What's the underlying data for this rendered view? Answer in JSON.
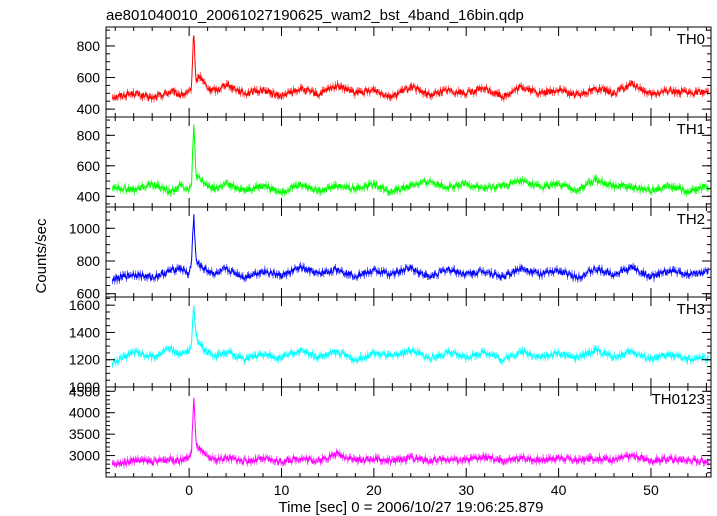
{
  "title": "ae801040010_20061027190625_wam2_bst_4band_16bin.qdp",
  "xlabel": "Time [sec] 0 = 2006/10/27 19:06:25.879",
  "ylabel": "Counts/sec",
  "chart_data": {
    "type": "line",
    "title": "ae801040010_20061027190625_wam2_bst_4band_16bin.qdp",
    "xlabel": "Time [sec] 0 = 2006/10/27 19:06:25.879",
    "ylabel": "Counts/sec",
    "xlim": [
      -9,
      56.5
    ],
    "x_ticks": [
      0,
      10,
      20,
      30,
      40,
      50
    ],
    "x_minor_step": 2,
    "grid": false,
    "x_sample": [
      -8.0,
      -6.0,
      -4.0,
      -2.0,
      -1.0,
      0.0,
      0.25,
      0.5,
      0.75,
      1.0,
      1.5,
      2.0,
      3.0,
      4.0,
      6.0,
      8.0,
      10.0,
      12.0,
      14.0,
      16.0,
      18.0,
      20.0,
      22.0,
      24.0,
      26.0,
      28.0,
      30.0,
      32.0,
      34.0,
      36.0,
      38.0,
      40.0,
      42.0,
      44.0,
      46.0,
      48.0,
      50.0,
      52.0,
      54.0,
      55.5
    ],
    "panels": [
      {
        "name": "TH0",
        "color": "#ff0000",
        "ylim": [
          350,
          920
        ],
        "y_ticks": [
          400,
          600,
          800
        ],
        "y_minor_step": 50,
        "y_sample": [
          480,
          500,
          470,
          510,
          490,
          500,
          540,
          900,
          560,
          610,
          580,
          530,
          520,
          560,
          500,
          520,
          480,
          530,
          490,
          550,
          500,
          520,
          480,
          540,
          490,
          520,
          500,
          530,
          480,
          540,
          500,
          520,
          490,
          530,
          500,
          560,
          490,
          520,
          500,
          510
        ]
      },
      {
        "name": "TH1",
        "color": "#00ff00",
        "ylim": [
          330,
          920
        ],
        "y_ticks": [
          400,
          600,
          800
        ],
        "y_minor_step": 50,
        "y_sample": [
          460,
          440,
          480,
          430,
          470,
          450,
          480,
          870,
          540,
          520,
          490,
          470,
          450,
          480,
          440,
          470,
          430,
          480,
          440,
          470,
          450,
          480,
          430,
          470,
          500,
          460,
          480,
          450,
          470,
          500,
          460,
          480,
          440,
          510,
          470,
          460,
          440,
          470,
          430,
          460
        ]
      },
      {
        "name": "TH2",
        "color": "#0000ff",
        "ylim": [
          580,
          1130
        ],
        "y_ticks": [
          600,
          800,
          1000
        ],
        "y_minor_step": 50,
        "y_sample": [
          690,
          720,
          700,
          740,
          760,
          720,
          790,
          1090,
          800,
          780,
          760,
          740,
          720,
          750,
          700,
          740,
          710,
          760,
          720,
          750,
          710,
          740,
          720,
          760,
          700,
          750,
          720,
          740,
          700,
          760,
          720,
          740,
          700,
          750,
          720,
          760,
          700,
          740,
          720,
          730
        ]
      },
      {
        "name": "TH3",
        "color": "#00ffff",
        "ylim": [
          1000,
          1660
        ],
        "y_ticks": [
          1000,
          1200,
          1400,
          1600
        ],
        "y_minor_step": 50,
        "y_sample": [
          1180,
          1260,
          1220,
          1280,
          1240,
          1270,
          1300,
          1600,
          1380,
          1330,
          1290,
          1250,
          1230,
          1260,
          1200,
          1240,
          1210,
          1270,
          1220,
          1260,
          1200,
          1250,
          1220,
          1270,
          1210,
          1250,
          1220,
          1260,
          1200,
          1260,
          1220,
          1250,
          1210,
          1270,
          1220,
          1260,
          1200,
          1240,
          1200,
          1210
        ]
      },
      {
        "name": "TH0123",
        "color": "#ff00ff",
        "ylim": [
          2500,
          4600
        ],
        "y_ticks": [
          3000,
          3500,
          4000,
          4500
        ],
        "y_minor_step": 100,
        "y_sample": [
          2780,
          2900,
          2850,
          2920,
          2880,
          2950,
          3050,
          4400,
          3250,
          3200,
          3050,
          2950,
          2900,
          2950,
          2870,
          2920,
          2860,
          2940,
          2880,
          3050,
          2890,
          2920,
          2870,
          2950,
          2880,
          2920,
          2890,
          2960,
          2870,
          2940,
          2900,
          2950,
          2880,
          2940,
          2900,
          3000,
          2880,
          2920,
          2890,
          2880
        ]
      }
    ]
  }
}
